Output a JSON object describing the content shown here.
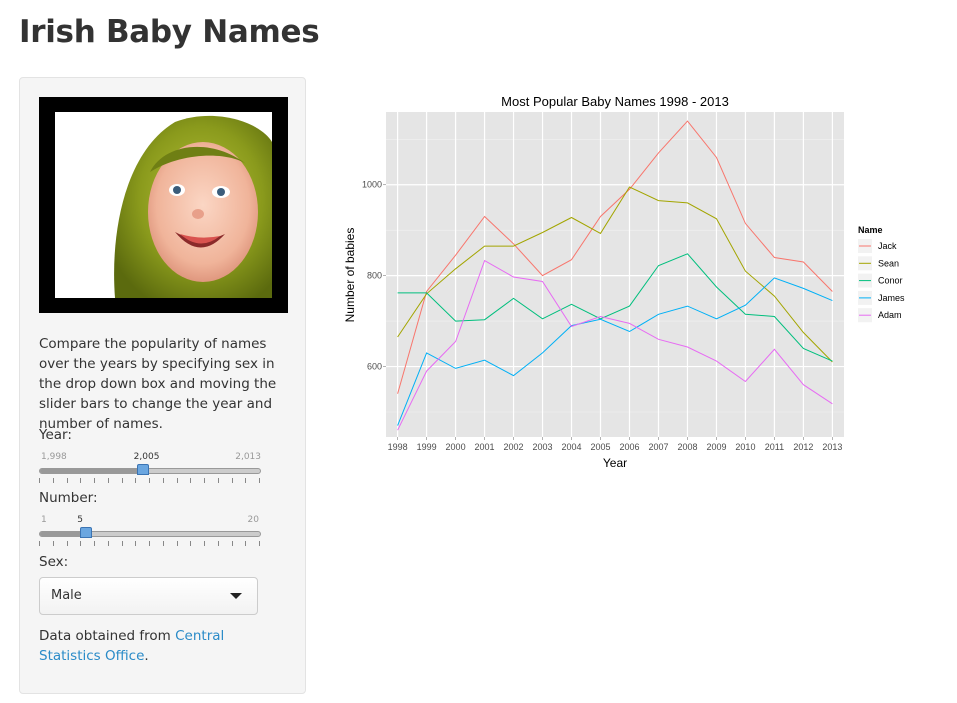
{
  "page": {
    "title": "Irish Baby Names"
  },
  "sidebar": {
    "description": "Compare the popularity of names over the years by specifying sex in the drop down box and moving the slider bars to change the year and number of names.",
    "year": {
      "label": "Year:",
      "min": "1,998",
      "max": "2,013",
      "value": "2,005",
      "fraction": 0.4667
    },
    "number": {
      "label": "Number:",
      "min": "1",
      "max": "20",
      "value": "5",
      "fraction": 0.2105
    },
    "sex": {
      "label": "Sex:",
      "selected": "Male"
    },
    "source": {
      "prefix": "Data obtained from ",
      "link_text": "Central Statistics Office",
      "suffix": "."
    }
  },
  "chart_data": {
    "type": "line",
    "title": "Most Popular Baby Names 1998 - 2013",
    "xlabel": "Year",
    "ylabel": "Number of babies",
    "x": [
      1998,
      1999,
      2000,
      2001,
      2002,
      2003,
      2004,
      2005,
      2006,
      2007,
      2008,
      2009,
      2010,
      2011,
      2012,
      2013
    ],
    "xlim": [
      1997.6,
      2013.4
    ],
    "ylim": [
      445,
      1160
    ],
    "yticks": [
      600,
      800,
      1000
    ],
    "grid": true,
    "legend": {
      "title": "Name",
      "placement": "right"
    },
    "series": [
      {
        "name": "Jack",
        "color": "#f8766d",
        "values": [
          540,
          765,
          845,
          930,
          870,
          800,
          835,
          930,
          990,
          1070,
          1140,
          1060,
          915,
          840,
          830,
          765
        ]
      },
      {
        "name": "Sean",
        "color": "#a3a500",
        "values": [
          665,
          760,
          815,
          865,
          865,
          895,
          928,
          893,
          995,
          965,
          960,
          925,
          810,
          755,
          675,
          610
        ]
      },
      {
        "name": "Conor",
        "color": "#00bf7d",
        "values": [
          762,
          762,
          700,
          703,
          750,
          705,
          737,
          705,
          733,
          822,
          848,
          775,
          715,
          710,
          640,
          612
        ]
      },
      {
        "name": "James",
        "color": "#00b0f6",
        "values": [
          470,
          630,
          596,
          614,
          580,
          630,
          690,
          704,
          677,
          715,
          733,
          705,
          735,
          795,
          772,
          745
        ]
      },
      {
        "name": "Adam",
        "color": "#e76bf3",
        "values": [
          460,
          590,
          655,
          833,
          797,
          787,
          688,
          710,
          695,
          660,
          643,
          612,
          567,
          638,
          560,
          518
        ]
      }
    ]
  }
}
